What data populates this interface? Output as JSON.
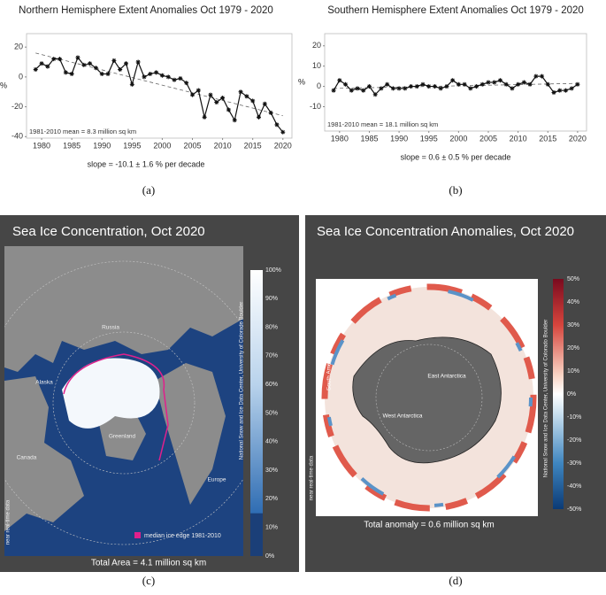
{
  "chart_data": [
    {
      "type": "line",
      "title": "Northern Hemisphere Extent Anomalies Oct 1979 - 2020",
      "y_label": "%",
      "annotation": "1981-2010 mean = 8.3 million sq km",
      "x_label": "slope = -10.1 ± 1.6 % per decade",
      "x": [
        1979,
        1980,
        1981,
        1982,
        1983,
        1984,
        1985,
        1986,
        1987,
        1988,
        1989,
        1990,
        1991,
        1992,
        1993,
        1994,
        1995,
        1996,
        1997,
        1998,
        1999,
        2000,
        2001,
        2002,
        2003,
        2004,
        2005,
        2006,
        2007,
        2008,
        2009,
        2010,
        2011,
        2012,
        2013,
        2014,
        2015,
        2016,
        2017,
        2018,
        2019,
        2020
      ],
      "values": [
        5,
        9,
        7,
        12,
        12,
        3,
        2,
        13,
        8,
        9,
        6,
        2,
        2,
        11,
        5,
        9,
        -5,
        10,
        0,
        2,
        3,
        1,
        0,
        -2,
        -1,
        -4,
        -12,
        -9,
        -27,
        -12,
        -17,
        -14,
        -22,
        -29,
        -10,
        -13,
        -16,
        -27,
        -18,
        -24,
        -32,
        -37
      ],
      "trend": {
        "x": [
          1979,
          2020
        ],
        "values": [
          16,
          -26
        ]
      },
      "color": "#111111",
      "xlim": [
        1977.5,
        2021.5
      ],
      "xticks": [
        1980,
        1985,
        1990,
        1995,
        2000,
        2005,
        2010,
        2015,
        2020
      ],
      "ylim": [
        -41,
        29
      ],
      "yticks": [
        20,
        0,
        -20,
        -40
      ],
      "grid": false
    },
    {
      "type": "line",
      "title": "Southern Hemisphere Extent Anomalies Oct 1979 - 2020",
      "y_label": "%",
      "annotation": "1981-2010 mean = 18.1 million sq km",
      "x_label": "slope = 0.6 ± 0.5 % per decade",
      "x": [
        1979,
        1980,
        1981,
        1982,
        1983,
        1984,
        1985,
        1986,
        1987,
        1988,
        1989,
        1990,
        1991,
        1992,
        1993,
        1994,
        1995,
        1996,
        1997,
        1998,
        1999,
        2000,
        2001,
        2002,
        2003,
        2004,
        2005,
        2006,
        2007,
        2008,
        2009,
        2010,
        2011,
        2012,
        2013,
        2014,
        2015,
        2016,
        2017,
        2018,
        2019,
        2020
      ],
      "values": [
        -2,
        3,
        1,
        -2,
        -1,
        -2,
        0,
        -4,
        -1,
        1,
        -1,
        -1,
        -1,
        0,
        0,
        1,
        0,
        0,
        -1,
        0,
        3,
        1,
        1,
        -1,
        0,
        1,
        2,
        2,
        3,
        1,
        -1,
        1,
        2,
        1,
        5,
        5,
        1,
        -3,
        -2,
        -2,
        -1,
        1
      ],
      "trend": {
        "x": [
          1979,
          2020
        ],
        "values": [
          -1,
          1.5
        ]
      },
      "color": "#111111",
      "xlim": [
        1977.5,
        2021.5
      ],
      "xticks": [
        1980,
        1985,
        1990,
        1995,
        2000,
        2005,
        2010,
        2015,
        2020
      ],
      "ylim": [
        -22,
        26
      ],
      "yticks": [
        20,
        10,
        0,
        -10
      ],
      "grid": false
    }
  ],
  "maps": [
    {
      "title": "Sea Ice Concentration, Oct 2020",
      "colorbar_ticks": [
        "100%",
        "90%",
        "80%",
        "70%",
        "60%",
        "50%",
        "40%",
        "30%",
        "20%",
        "10%",
        "0%"
      ],
      "credit": "National Snow and Ice Data Center, University of Colorado Boulder",
      "side_note": "near real-time data",
      "legend": "median ice edge 1981-2010",
      "footer": "Total Area = 4.1 million sq km",
      "regions": [
        "Russia",
        "Alaska",
        "Greenland",
        "Canada",
        "Europe"
      ]
    },
    {
      "title": "Sea Ice Concentration Anomalies, Oct 2020",
      "colorbar_ticks": [
        "50%",
        "40%",
        "30%",
        "20%",
        "10%",
        "0%",
        "-10%",
        "-20%",
        "-30%",
        "-40%",
        "-50%"
      ],
      "credit": "National Snow and Ice Data Center, University of Colorado Boulder",
      "side_note": "near real-time data",
      "footer": "Total anomaly = 0.6 million sq km",
      "regions": [
        "South America",
        "East Antarctica",
        "West Antarctica"
      ]
    }
  ],
  "panel_labels": [
    "(a)",
    "(b)",
    "(c)",
    "(d)"
  ]
}
